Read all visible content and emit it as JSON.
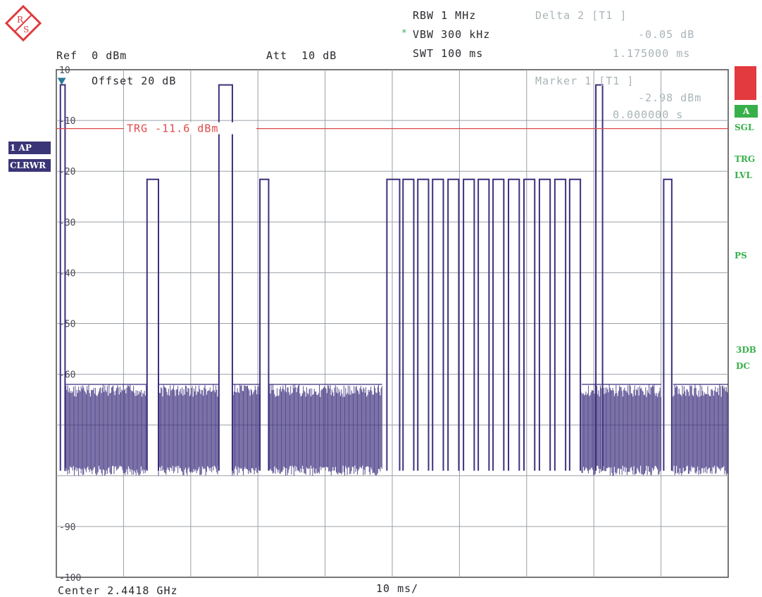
{
  "logo": {
    "text_r": "R",
    "text_s": "S",
    "color": "#e03a3e"
  },
  "header": {
    "rbw": "RBW 1 MHz",
    "vbw_star": "*",
    "vbw": "VBW 300 kHz",
    "swt": "SWT 100 ms",
    "ref": "Ref  0 dBm",
    "att": "Att  10 dB",
    "delta_title": "Delta 2 [T1 ]",
    "delta_level": "-0.05 dB",
    "delta_time": "1.175000 ms"
  },
  "plot_labels": {
    "offset": "Offset  20 dB",
    "trg": "TRG -11.6 dBm",
    "marker_title": "Marker 1 [T1 ]",
    "marker_level": "-2.98 dBm",
    "marker_time": "0.000000 s",
    "center": "Center 2.4418 GHz",
    "div": "10 ms/"
  },
  "left_badges": {
    "ap": "1 AP",
    "clrwr": "CLRWR"
  },
  "right_panel": {
    "a_label": "A",
    "sgl": "SGL",
    "trg": "TRG",
    "lvl": "LVL",
    "ps": "PS",
    "db3": "3DB",
    "dc": "DC",
    "red_color": "#e23a3e",
    "green_color": "#38b04a"
  },
  "chart_data": {
    "type": "line",
    "xlabel": "",
    "ylabel": "",
    "xlim": [
      0,
      100
    ],
    "ylim": [
      -100,
      0
    ],
    "y_ticks": [
      "10",
      "-10",
      "-20",
      "-30",
      "-40",
      "-50",
      "-60",
      "-90",
      "-100"
    ],
    "trigger_level": -11.6,
    "noise_floor": [
      -62,
      -78
    ],
    "pulses": [
      {
        "start": 0.6,
        "end": 1.3,
        "level": -2.98
      },
      {
        "start": 13.5,
        "end": 15.2,
        "level": -21.6
      },
      {
        "start": 24.2,
        "end": 26.2,
        "level": -3.0
      },
      {
        "start": 30.3,
        "end": 31.6,
        "level": -21.6
      },
      {
        "start": 49.2,
        "end": 51.1,
        "level": -21.6
      },
      {
        "start": 51.6,
        "end": 53.2,
        "level": -21.6
      },
      {
        "start": 53.8,
        "end": 55.4,
        "level": -21.6
      },
      {
        "start": 56.0,
        "end": 57.6,
        "level": -21.6
      },
      {
        "start": 58.3,
        "end": 59.9,
        "level": -21.6
      },
      {
        "start": 60.6,
        "end": 62.2,
        "level": -21.6
      },
      {
        "start": 62.8,
        "end": 64.4,
        "level": -21.6
      },
      {
        "start": 65.0,
        "end": 66.6,
        "level": -21.6
      },
      {
        "start": 67.3,
        "end": 68.9,
        "level": -21.6
      },
      {
        "start": 69.6,
        "end": 71.2,
        "level": -21.6
      },
      {
        "start": 71.9,
        "end": 73.5,
        "level": -21.6
      },
      {
        "start": 74.2,
        "end": 75.8,
        "level": -21.6
      },
      {
        "start": 76.4,
        "end": 78.0,
        "level": -21.6
      },
      {
        "start": 80.3,
        "end": 81.3,
        "level": -3.0
      },
      {
        "start": 90.4,
        "end": 91.6,
        "level": -21.6
      }
    ],
    "noise_segments": [
      [
        1.3,
        13.5
      ],
      [
        15.2,
        24.2
      ],
      [
        26.2,
        30.3
      ],
      [
        31.6,
        48.5
      ],
      [
        78.2,
        81.2
      ],
      [
        81.3,
        90.0
      ],
      [
        91.8,
        100
      ]
    ],
    "trace_color": "#3d2f7e",
    "grid": true
  }
}
